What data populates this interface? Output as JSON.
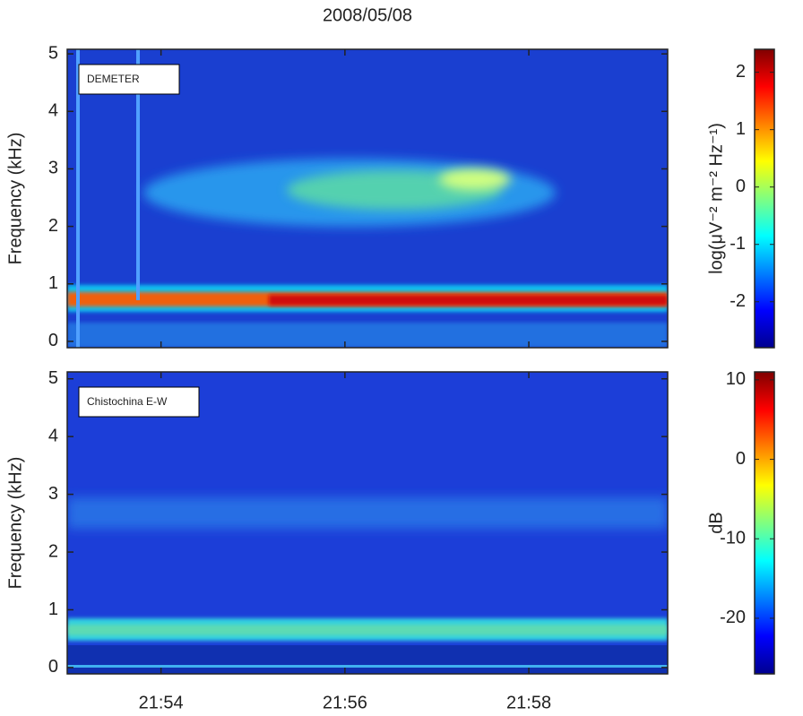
{
  "chart_data": [
    {
      "type": "spectrogram",
      "title": "2008/05/08",
      "label": "DEMETER",
      "ylabel": "Frequency (kHz)",
      "xlim": [
        52.98,
        59.51
      ],
      "xticks": [
        54,
        56,
        58
      ],
      "ylim": [
        -0.11,
        5.08
      ],
      "yticks": [
        0,
        1,
        2,
        3,
        4,
        5
      ],
      "colorbar_label": "log(μV⁻² m⁻² Hz⁻¹)",
      "clim": [
        -2.8,
        2.4
      ],
      "cticks": [
        -2,
        -1,
        0,
        1,
        2
      ],
      "colormap": [
        "#00008f",
        "#0000ff",
        "#0080ff",
        "#00ffff",
        "#80ff80",
        "#ffff00",
        "#ff8000",
        "#ff0000",
        "#800000"
      ]
    },
    {
      "type": "spectrogram",
      "label": "Chistochina E-W",
      "ylabel": "Frequency (kHz)",
      "xlim": [
        52.98,
        59.51
      ],
      "xticks": [
        {
          "value": 54,
          "label": "21:54"
        },
        {
          "value": 56,
          "label": "21:56"
        },
        {
          "value": 58,
          "label": "21:58"
        }
      ],
      "ylim": [
        -0.11,
        5.12
      ],
      "yticks": [
        0,
        1,
        2,
        3,
        4,
        5
      ],
      "colorbar_label": "dB",
      "clim": [
        -27,
        11
      ],
      "cticks": [
        -20,
        -10,
        0,
        10
      ],
      "colormap": [
        "#00008f",
        "#0000ff",
        "#0080ff",
        "#00ffff",
        "#80ff80",
        "#ffff00",
        "#ff8000",
        "#ff0000",
        "#800000"
      ]
    }
  ]
}
